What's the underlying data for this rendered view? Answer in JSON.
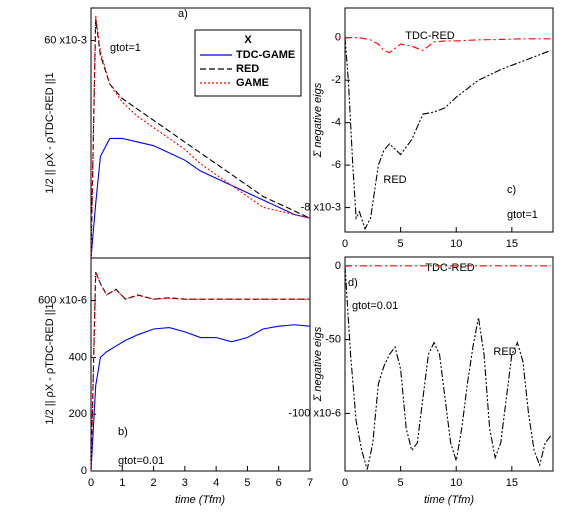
{
  "chart_data": [
    {
      "type": "line",
      "ylabel": "1/2 || ρX - ρTDC-RED ||1",
      "legend_title": "X",
      "annotations": [
        "a)",
        "gtot=1"
      ],
      "xlim": [
        0,
        7
      ],
      "ylim": [
        0,
        69
      ],
      "yticks": [
        {
          "value": 60,
          "label": "60 x10-3"
        }
      ],
      "x": [
        0,
        0.15,
        0.3,
        0.6,
        1,
        1.5,
        2,
        2.5,
        3,
        3.5,
        4,
        4.5,
        5,
        5.5,
        6,
        6.5,
        7
      ],
      "series": [
        {
          "name": "TDC-GAME",
          "color": "#0000ff",
          "dash": "solid",
          "values": [
            0,
            15,
            28,
            33,
            33,
            32,
            31,
            29,
            27,
            24,
            22,
            20,
            18,
            16,
            14,
            12,
            11
          ]
        },
        {
          "name": "RED",
          "color": "#000000",
          "dash": "dash",
          "values": [
            0,
            66,
            56,
            48,
            44,
            41,
            38,
            35,
            32,
            29,
            26,
            23,
            20,
            17,
            15,
            13,
            11
          ]
        },
        {
          "name": "GAME",
          "color": "#ff0000",
          "dash": "dot",
          "values": [
            0,
            67,
            57,
            48,
            43,
            39,
            36,
            33,
            30,
            26,
            23,
            20,
            17,
            14,
            13,
            12,
            11
          ]
        }
      ]
    },
    {
      "type": "line",
      "ylabel": "1/2 || ρX - ρTDC-RED ||1",
      "xlabel": "time (Tfm)",
      "annotations": [
        "b)",
        "gtot=0.01"
      ],
      "xlim": [
        0,
        7
      ],
      "ylim": [
        0,
        750
      ],
      "xticks": [
        0,
        1,
        2,
        3,
        4,
        5,
        6,
        7
      ],
      "yticks": [
        0,
        200,
        400,
        {
          "value": 600,
          "label": "600 x10-6"
        }
      ],
      "x": [
        0,
        0.15,
        0.3,
        0.5,
        0.8,
        1.1,
        1.5,
        2,
        2.5,
        3,
        3.5,
        4,
        4.5,
        5,
        5.5,
        6,
        6.5,
        7
      ],
      "series": [
        {
          "name": "TDC-GAME",
          "color": "#0000ff",
          "dash": "solid",
          "values": [
            0,
            300,
            400,
            420,
            440,
            460,
            480,
            500,
            505,
            490,
            470,
            470,
            455,
            470,
            500,
            510,
            515,
            510
          ]
        },
        {
          "name": "RED",
          "color": "#000000",
          "dash": "dash",
          "values": [
            0,
            700,
            660,
            620,
            640,
            605,
            620,
            605,
            610,
            605,
            605,
            605,
            605,
            605,
            605,
            605,
            605,
            605
          ]
        },
        {
          "name": "GAME",
          "color": "#ff0000",
          "dash": "dot",
          "values": [
            0,
            700,
            660,
            620,
            638,
            605,
            618,
            605,
            608,
            605,
            605,
            605,
            605,
            605,
            605,
            605,
            605,
            605
          ]
        }
      ]
    },
    {
      "type": "line",
      "ylabel": "Σ negative eigs",
      "annotations": [
        "TDC-RED",
        "RED",
        "c)",
        "gtot=1"
      ],
      "xlim": [
        0,
        18.7
      ],
      "ylim": [
        -9.15,
        1.4
      ],
      "xticks": [
        0,
        5,
        10,
        15
      ],
      "yticks": [
        0,
        -2,
        -4,
        -6,
        {
          "value": -8,
          "label": "-8 x10-3"
        }
      ],
      "x": [
        0,
        0.3,
        0.7,
        1,
        1.3,
        1.8,
        2.3,
        3,
        3.5,
        4,
        5,
        6,
        7,
        8,
        9,
        10,
        12,
        14,
        16,
        18.5
      ],
      "series": [
        {
          "name": "TDC-RED",
          "color": "#ff0000",
          "dash": "dashdot",
          "values": [
            0,
            0,
            0,
            0,
            0,
            -0.05,
            -0.1,
            -0.3,
            -0.6,
            -0.7,
            -0.3,
            -0.4,
            -0.6,
            -0.2,
            -0.15,
            -0.15,
            -0.1,
            -0.08,
            -0.05,
            -0.05
          ]
        },
        {
          "name": "RED",
          "color": "#000000",
          "dash": "dashdotdot",
          "values": [
            0,
            -2,
            -6,
            -8.5,
            -8.2,
            -9,
            -8.5,
            -6,
            -5.3,
            -5,
            -5.5,
            -4.8,
            -3.6,
            -3.5,
            -3.3,
            -2.8,
            -2,
            -1.5,
            -1.1,
            -0.6
          ]
        }
      ]
    },
    {
      "type": "line",
      "ylabel": "Σ negative eigs",
      "xlabel": "time (Tfm)",
      "annotations": [
        "TDC-RED",
        "d)",
        "gtot=0.01",
        "RED"
      ],
      "xlim": [
        0,
        18.7
      ],
      "ylim": [
        -139,
        6
      ],
      "xticks": [
        0,
        5,
        10,
        15
      ],
      "yticks": [
        0,
        -50,
        {
          "value": -100,
          "label": "-100 x10-6"
        }
      ],
      "x": [
        0,
        0.5,
        1,
        1.5,
        2,
        2.5,
        3,
        3.5,
        4,
        4.5,
        5,
        5.5,
        6,
        6.5,
        7,
        7.5,
        8,
        8.5,
        9,
        9.5,
        10,
        10.5,
        11,
        11.5,
        12,
        12.5,
        13,
        13.5,
        14,
        14.5,
        15,
        15.5,
        16,
        16.5,
        17,
        17.5,
        18,
        18.5
      ],
      "series": [
        {
          "name": "TDC-RED",
          "color": "#ff0000",
          "dash": "dashdot",
          "values": [
            0,
            0,
            0,
            0,
            0,
            0,
            0,
            0,
            0,
            0,
            0,
            0,
            0,
            0,
            0,
            0,
            0,
            0,
            0,
            0,
            0,
            0,
            0,
            0,
            0,
            0,
            0,
            0,
            0,
            0,
            0,
            0,
            0,
            0,
            0,
            0,
            0,
            0
          ]
        },
        {
          "name": "RED",
          "color": "#000000",
          "dash": "dashdotdot",
          "values": [
            0,
            -60,
            -105,
            -125,
            -138,
            -120,
            -80,
            -68,
            -60,
            -55,
            -70,
            -110,
            -125,
            -120,
            -90,
            -60,
            -52,
            -60,
            -90,
            -120,
            -132,
            -110,
            -80,
            -55,
            -35,
            -60,
            -110,
            -130,
            -120,
            -90,
            -60,
            -52,
            -65,
            -100,
            -125,
            -135,
            -120,
            -115
          ]
        }
      ]
    }
  ]
}
